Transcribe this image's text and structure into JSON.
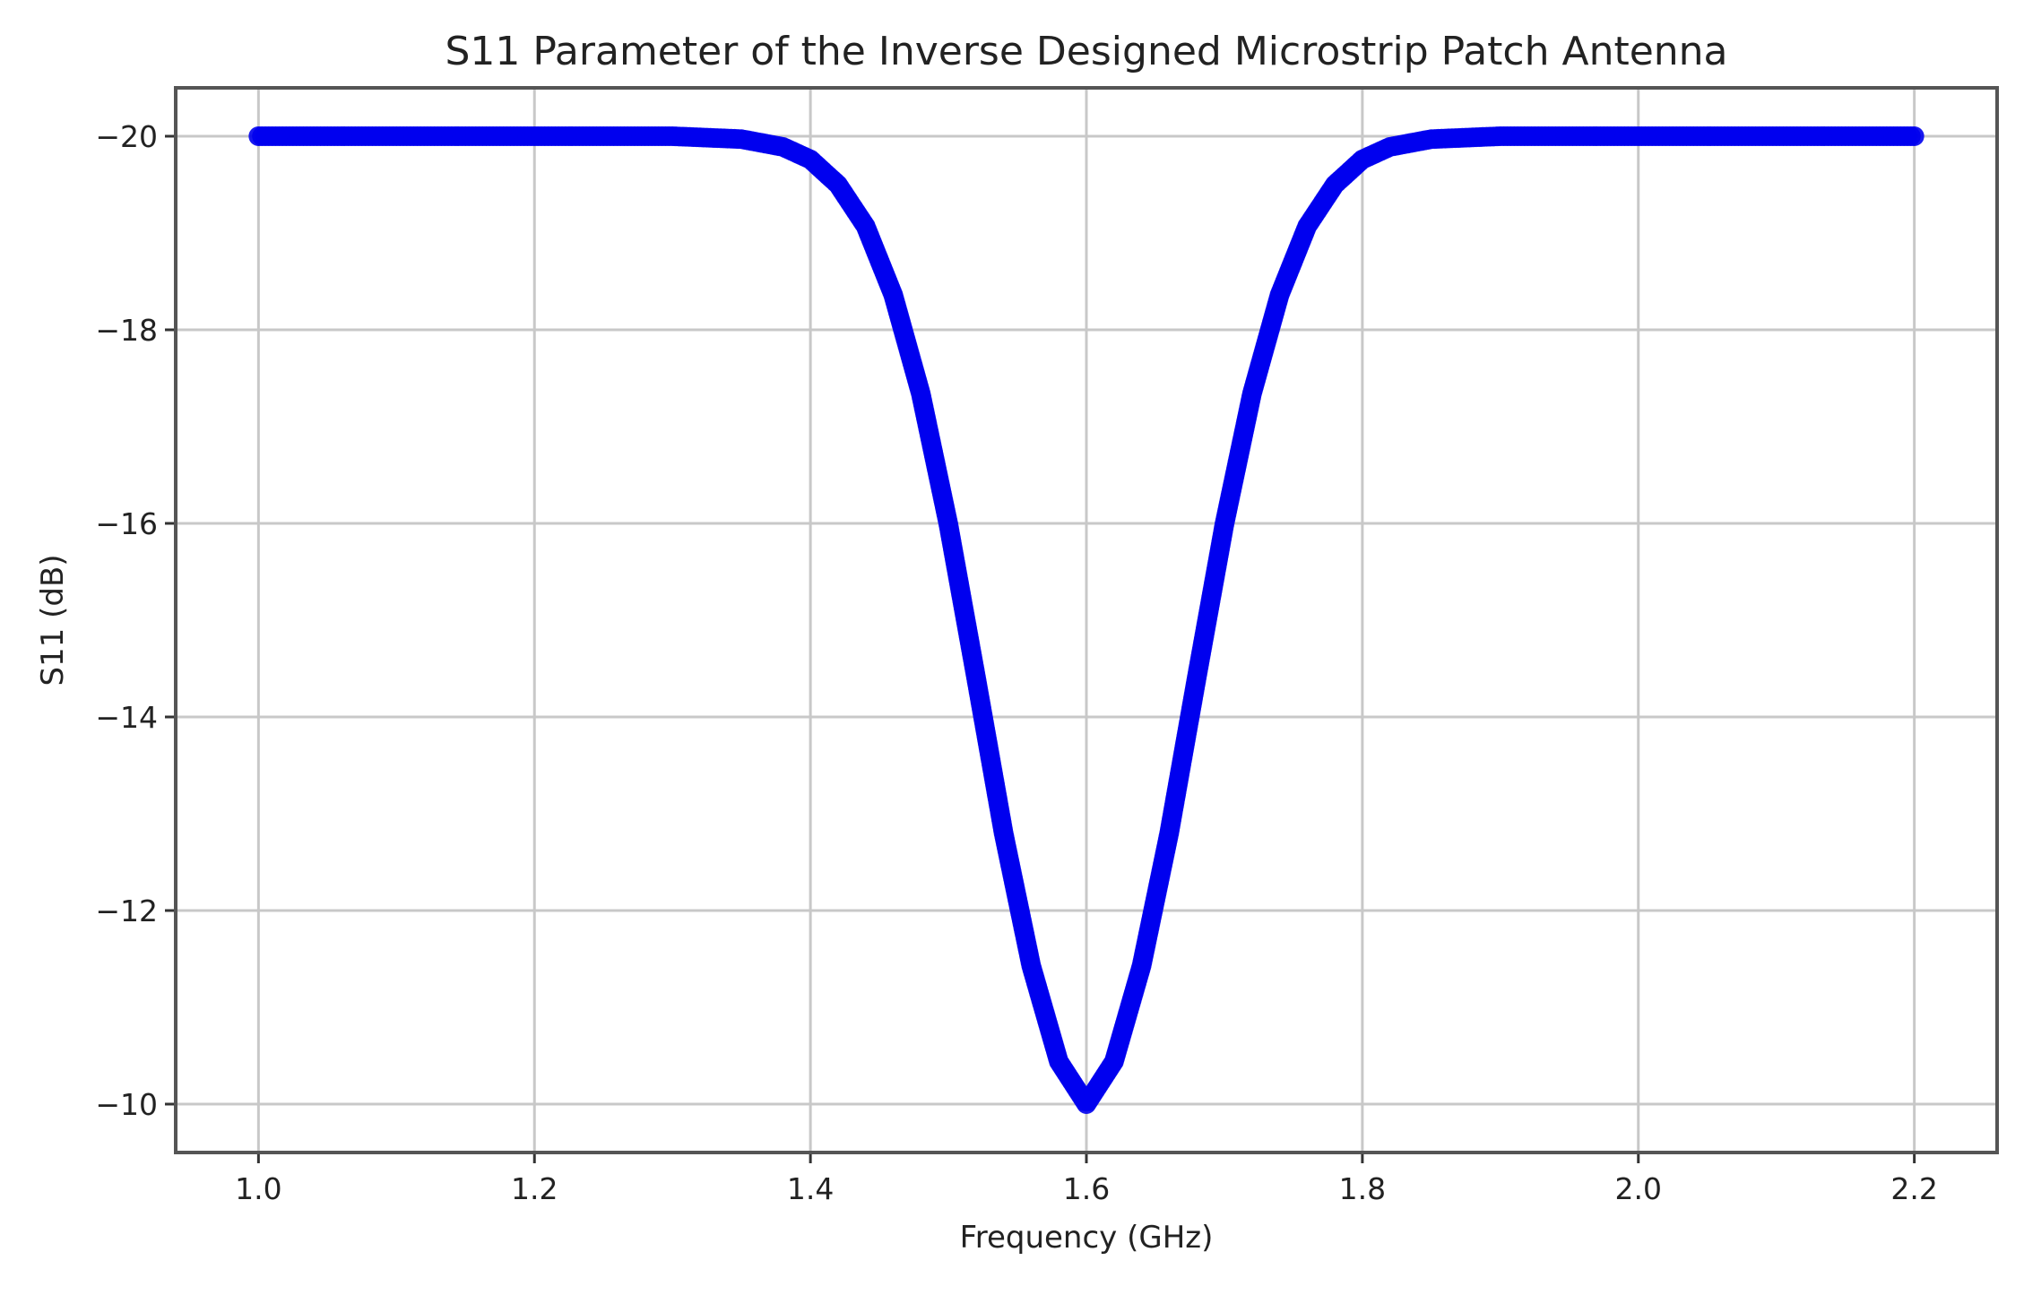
{
  "chart_data": {
    "type": "scatter",
    "title": "S11 Parameter of the Inverse Designed Microstrip Patch Antenna",
    "xlabel": "Frequency (GHz)",
    "ylabel": "S11 (dB)",
    "xlim": [
      0.94,
      2.26
    ],
    "ylim": [
      -9.5,
      -20.5
    ],
    "y_axis_inverted": true,
    "x_ticks": [
      1.0,
      1.2,
      1.4,
      1.6,
      1.8,
      2.0,
      2.2
    ],
    "x_tick_labels": [
      "1.0",
      "1.2",
      "1.4",
      "1.6",
      "1.8",
      "2.0",
      "2.2"
    ],
    "y_ticks": [
      -20,
      -18,
      -16,
      -14,
      -12,
      -10
    ],
    "y_tick_labels": [
      "−20",
      "−18",
      "−16",
      "−14",
      "−12",
      "−10"
    ],
    "grid": true,
    "marker_color": "#0000ee",
    "series": [
      {
        "x": [
          1.0,
          1.05,
          1.1,
          1.15,
          1.2,
          1.25,
          1.3,
          1.35,
          1.38,
          1.4,
          1.42,
          1.44,
          1.46,
          1.48,
          1.5,
          1.52,
          1.54,
          1.56,
          1.58,
          1.6,
          1.62,
          1.64,
          1.66,
          1.68,
          1.7,
          1.72,
          1.74,
          1.76,
          1.78,
          1.8,
          1.82,
          1.85,
          1.9,
          1.95,
          2.0,
          2.05,
          2.1,
          2.15,
          2.2
        ],
        "y": [
          -20.0,
          -20.0,
          -20.0,
          -20.0,
          -20.0,
          -20.0,
          -20.0,
          -19.97,
          -19.89,
          -19.76,
          -19.5,
          -19.07,
          -18.36,
          -17.34,
          -15.99,
          -14.41,
          -12.8,
          -11.43,
          -10.44,
          -10.0,
          -10.44,
          -11.43,
          -12.8,
          -14.41,
          -15.99,
          -17.34,
          -18.36,
          -19.07,
          -19.5,
          -19.76,
          -19.89,
          -19.97,
          -20.0,
          -20.0,
          -20.0,
          -20.0,
          -20.0,
          -20.0,
          -20.0
        ]
      }
    ]
  }
}
